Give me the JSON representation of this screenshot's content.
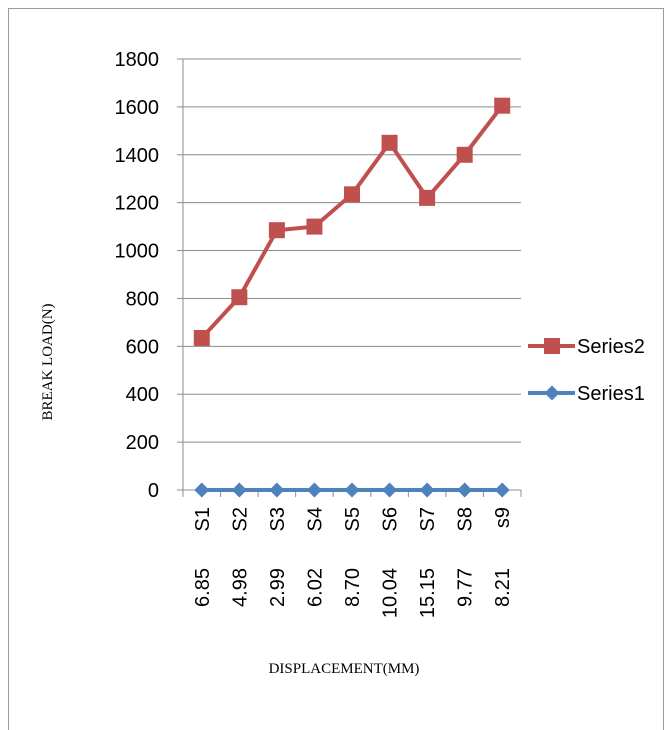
{
  "chart_data": {
    "type": "line",
    "xlabel": "DISPLACEMENT(MM)",
    "ylabel": "BREAK LOAD(N)",
    "categories": [
      "S1",
      "S2",
      "S3",
      "S4",
      "S5",
      "S6",
      "S7",
      "S8",
      "s9"
    ],
    "sub_categories": [
      "6.85",
      "4.98",
      "2.99",
      "6.02",
      "8.70",
      "10.04",
      "15.15",
      "9.77",
      "8.21"
    ],
    "ylim": [
      0,
      1800
    ],
    "yticks": [
      "0",
      "200",
      "400",
      "600",
      "800",
      "1000",
      "1200",
      "1400",
      "1600",
      "1800"
    ],
    "grid": true,
    "legend_position": "right",
    "series": [
      {
        "name": "Series2",
        "color": "#c0504d",
        "marker": "square",
        "values": [
          635,
          805,
          1085,
          1100,
          1235,
          1450,
          1220,
          1400,
          1605
        ]
      },
      {
        "name": "Series1",
        "color": "#4f81bd",
        "marker": "diamond",
        "values": [
          0,
          0,
          0,
          0,
          0,
          0,
          0,
          0,
          0
        ]
      }
    ],
    "legend": [
      "Series2",
      "Series1"
    ]
  }
}
